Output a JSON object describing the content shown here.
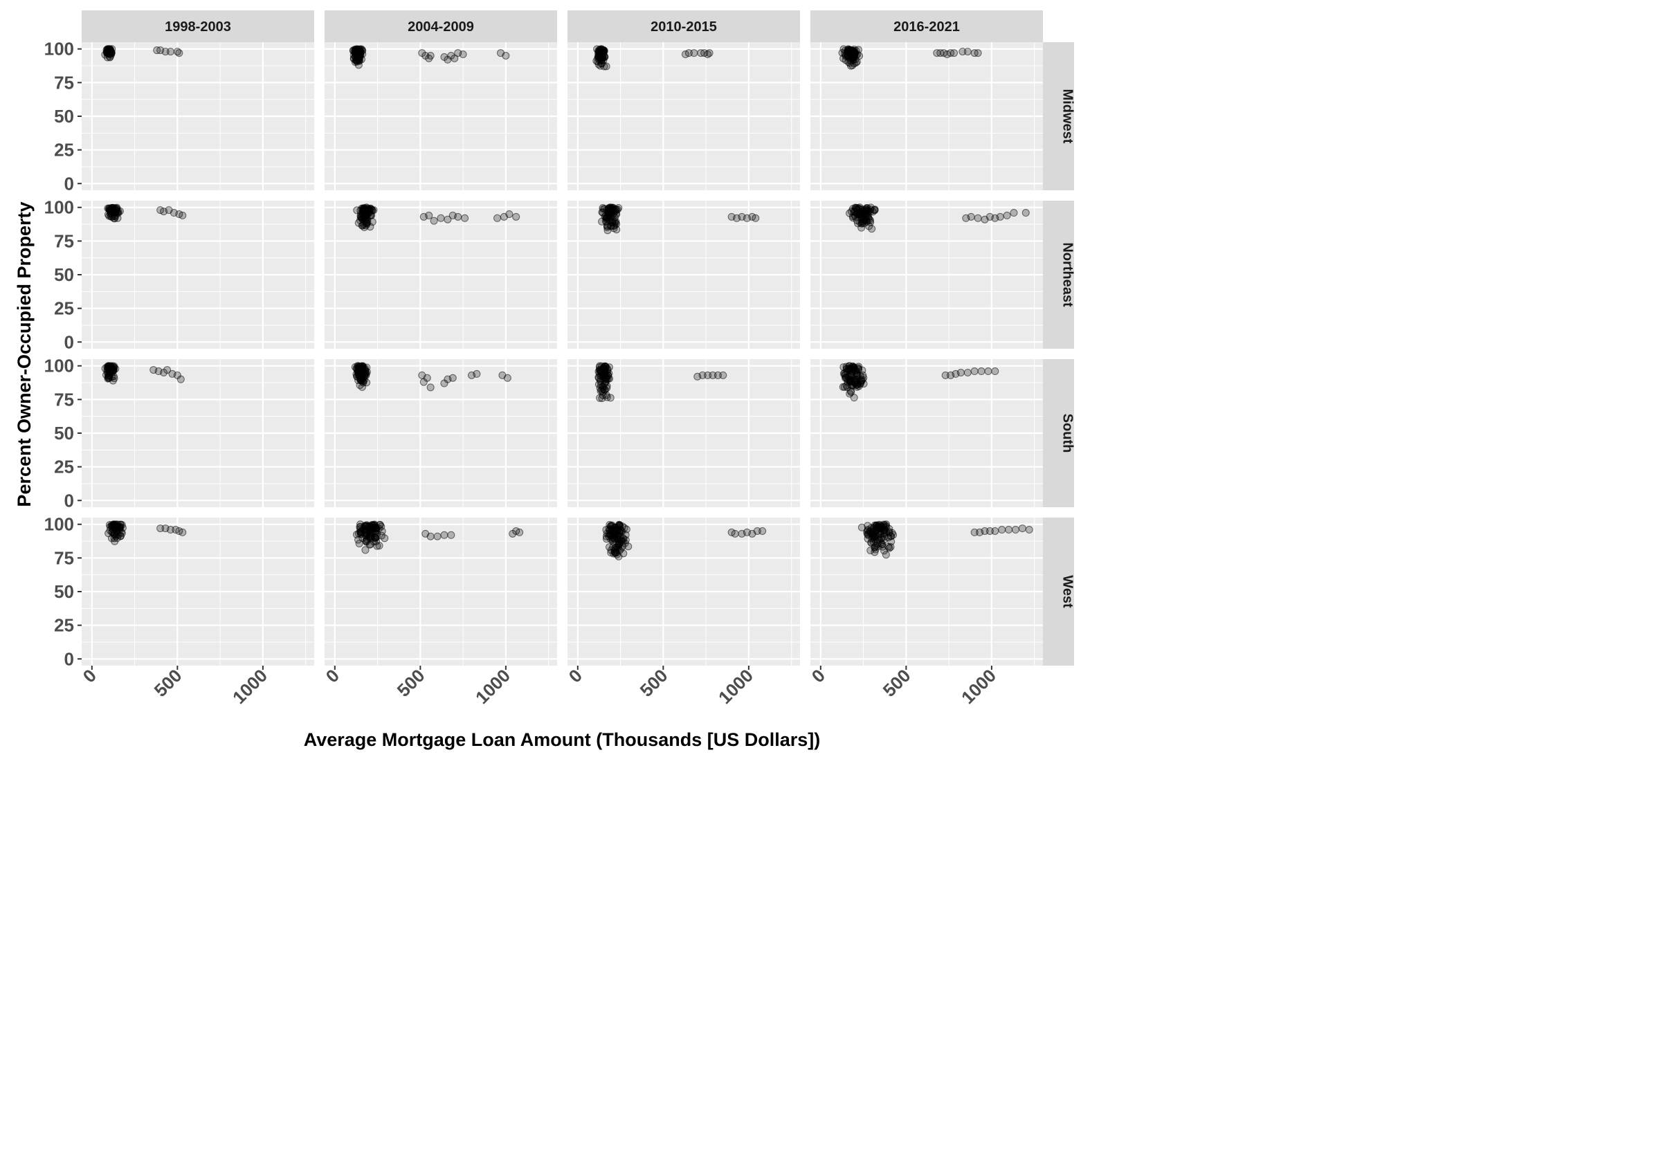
{
  "chart_data": {
    "type": "scatter",
    "xlabel": "Average Mortgage Loan Amount (Thousands [US Dollars])",
    "ylabel": "Percent Owner-Occupied Property",
    "xlim": [
      -60,
      1300
    ],
    "ylim": [
      -5,
      105
    ],
    "x_ticks": [
      0,
      500,
      1000
    ],
    "x_tick_labels": [
      "0",
      "500",
      "1000"
    ],
    "y_ticks": [
      0,
      25,
      50,
      75,
      100
    ],
    "y_tick_labels": [
      "0",
      "25",
      "50",
      "75",
      "100"
    ],
    "col_facets": [
      "1998-2003",
      "2004-2009",
      "2010-2015",
      "2016-2021"
    ],
    "row_facets": [
      "Midwest",
      "Northeast",
      "South",
      "West"
    ],
    "grid": true,
    "point_color": "#000000",
    "point_alpha": 0.25,
    "panels": [
      {
        "row": "Midwest",
        "col": "1998-2003",
        "clusters": [
          {
            "x": [
              70,
              130
            ],
            "y": [
              93,
              100
            ],
            "n": 45
          }
        ],
        "points": [
          [
            380,
            99
          ],
          [
            400,
            99
          ],
          [
            430,
            98
          ],
          [
            460,
            98
          ],
          [
            500,
            98
          ],
          [
            510,
            97
          ]
        ]
      },
      {
        "row": "Midwest",
        "col": "2004-2009",
        "clusters": [
          {
            "x": [
              95,
              175
            ],
            "y": [
              87,
              100
            ],
            "n": 70
          }
        ],
        "points": [
          [
            510,
            97
          ],
          [
            530,
            95
          ],
          [
            550,
            93
          ],
          [
            560,
            95
          ],
          [
            640,
            94
          ],
          [
            660,
            92
          ],
          [
            680,
            95
          ],
          [
            700,
            93
          ],
          [
            720,
            97
          ],
          [
            750,
            96
          ],
          [
            970,
            97
          ],
          [
            1000,
            95
          ]
        ]
      },
      {
        "row": "Midwest",
        "col": "2010-2015",
        "clusters": [
          {
            "x": [
              100,
              170
            ],
            "y": [
              85,
              100
            ],
            "n": 70
          }
        ],
        "points": [
          [
            630,
            96
          ],
          [
            650,
            97
          ],
          [
            680,
            97
          ],
          [
            720,
            97
          ],
          [
            740,
            97
          ],
          [
            760,
            96
          ],
          [
            770,
            97
          ]
        ]
      },
      {
        "row": "Midwest",
        "col": "2016-2021",
        "clusters": [
          {
            "x": [
              120,
              240
            ],
            "y": [
              87,
              100
            ],
            "n": 75
          }
        ],
        "points": [
          [
            680,
            97
          ],
          [
            700,
            97
          ],
          [
            720,
            97
          ],
          [
            740,
            96
          ],
          [
            760,
            97
          ],
          [
            780,
            97
          ],
          [
            830,
            98
          ],
          [
            860,
            98
          ],
          [
            900,
            97
          ],
          [
            920,
            97
          ]
        ]
      },
      {
        "row": "Northeast",
        "col": "1998-2003",
        "clusters": [
          {
            "x": [
              80,
              170
            ],
            "y": [
              91,
              100
            ],
            "n": 50
          }
        ],
        "points": [
          [
            400,
            98
          ],
          [
            420,
            97
          ],
          [
            450,
            98
          ],
          [
            480,
            96
          ],
          [
            510,
            95
          ],
          [
            530,
            94
          ]
        ]
      },
      {
        "row": "Northeast",
        "col": "2004-2009",
        "clusters": [
          {
            "x": [
              120,
              240
            ],
            "y": [
              84,
              100
            ],
            "n": 80
          }
        ],
        "points": [
          [
            520,
            93
          ],
          [
            550,
            94
          ],
          [
            580,
            90
          ],
          [
            620,
            92
          ],
          [
            660,
            91
          ],
          [
            690,
            94
          ],
          [
            720,
            93
          ],
          [
            760,
            92
          ],
          [
            950,
            92
          ],
          [
            990,
            93
          ],
          [
            1020,
            95
          ],
          [
            1060,
            93
          ]
        ]
      },
      {
        "row": "Northeast",
        "col": "2010-2015",
        "clusters": [
          {
            "x": [
              120,
              260
            ],
            "y": [
              82,
              100
            ],
            "n": 75
          }
        ],
        "points": [
          [
            900,
            93
          ],
          [
            930,
            92
          ],
          [
            960,
            93
          ],
          [
            990,
            92
          ],
          [
            1020,
            93
          ],
          [
            1040,
            92
          ]
        ]
      },
      {
        "row": "Northeast",
        "col": "2016-2021",
        "clusters": [
          {
            "x": [
              150,
              350
            ],
            "y": [
              82,
              100
            ],
            "n": 80
          }
        ],
        "points": [
          [
            850,
            92
          ],
          [
            880,
            93
          ],
          [
            920,
            92
          ],
          [
            960,
            91
          ],
          [
            990,
            93
          ],
          [
            1020,
            92
          ],
          [
            1050,
            93
          ],
          [
            1090,
            94
          ],
          [
            1130,
            96
          ],
          [
            1200,
            96
          ]
        ]
      },
      {
        "row": "South",
        "col": "1998-2003",
        "clusters": [
          {
            "x": [
              60,
              150
            ],
            "y": [
              88,
              100
            ],
            "n": 50
          }
        ],
        "points": [
          [
            360,
            97
          ],
          [
            390,
            96
          ],
          [
            420,
            95
          ],
          [
            440,
            97
          ],
          [
            470,
            94
          ],
          [
            500,
            93
          ],
          [
            520,
            90
          ]
        ]
      },
      {
        "row": "South",
        "col": "2004-2009",
        "clusters": [
          {
            "x": [
              100,
              200
            ],
            "y": [
              83,
              100
            ],
            "n": 80
          }
        ],
        "points": [
          [
            510,
            93
          ],
          [
            520,
            88
          ],
          [
            540,
            91
          ],
          [
            560,
            84
          ],
          [
            640,
            87
          ],
          [
            660,
            90
          ],
          [
            690,
            91
          ],
          [
            800,
            93
          ],
          [
            830,
            94
          ],
          [
            980,
            93
          ],
          [
            1010,
            91
          ]
        ]
      },
      {
        "row": "South",
        "col": "2010-2015",
        "clusters": [
          {
            "x": [
              100,
              200
            ],
            "y": [
              74,
              100
            ],
            "n": 80
          }
        ],
        "points": [
          [
            700,
            92
          ],
          [
            730,
            93
          ],
          [
            760,
            93
          ],
          [
            790,
            93
          ],
          [
            820,
            93
          ],
          [
            850,
            93
          ]
        ]
      },
      {
        "row": "South",
        "col": "2016-2021",
        "clusters": [
          {
            "x": [
              100,
              280
            ],
            "y": [
              74,
              100
            ],
            "n": 90
          }
        ],
        "points": [
          [
            730,
            93
          ],
          [
            760,
            93
          ],
          [
            790,
            94
          ],
          [
            820,
            95
          ],
          [
            860,
            95
          ],
          [
            900,
            96
          ],
          [
            940,
            96
          ],
          [
            980,
            96
          ],
          [
            1020,
            96
          ]
        ]
      },
      {
        "row": "West",
        "col": "1998-2003",
        "clusters": [
          {
            "x": [
              80,
              200
            ],
            "y": [
              86,
              100
            ],
            "n": 55
          }
        ],
        "points": [
          [
            400,
            97
          ],
          [
            430,
            97
          ],
          [
            460,
            96
          ],
          [
            490,
            96
          ],
          [
            510,
            95
          ],
          [
            530,
            94
          ]
        ]
      },
      {
        "row": "West",
        "col": "2004-2009",
        "clusters": [
          {
            "x": [
              110,
              310
            ],
            "y": [
              80,
              100
            ],
            "n": 90
          }
        ],
        "points": [
          [
            530,
            93
          ],
          [
            560,
            91
          ],
          [
            600,
            91
          ],
          [
            640,
            92
          ],
          [
            680,
            92
          ],
          [
            1040,
            93
          ],
          [
            1060,
            95
          ],
          [
            1080,
            94
          ]
        ]
      },
      {
        "row": "West",
        "col": "2010-2015",
        "clusters": [
          {
            "x": [
              140,
              310
            ],
            "y": [
              72,
              100
            ],
            "n": 100
          }
        ],
        "points": [
          [
            900,
            94
          ],
          [
            920,
            93
          ],
          [
            960,
            93
          ],
          [
            990,
            94
          ],
          [
            1020,
            93
          ],
          [
            1050,
            95
          ],
          [
            1080,
            95
          ]
        ]
      },
      {
        "row": "West",
        "col": "2016-2021",
        "clusters": [
          {
            "x": [
              200,
              480
            ],
            "y": [
              75,
              100
            ],
            "n": 100
          }
        ],
        "points": [
          [
            900,
            94
          ],
          [
            930,
            94
          ],
          [
            960,
            95
          ],
          [
            990,
            95
          ],
          [
            1020,
            95
          ],
          [
            1060,
            96
          ],
          [
            1100,
            96
          ],
          [
            1140,
            96
          ],
          [
            1180,
            97
          ],
          [
            1220,
            96
          ]
        ]
      }
    ]
  }
}
